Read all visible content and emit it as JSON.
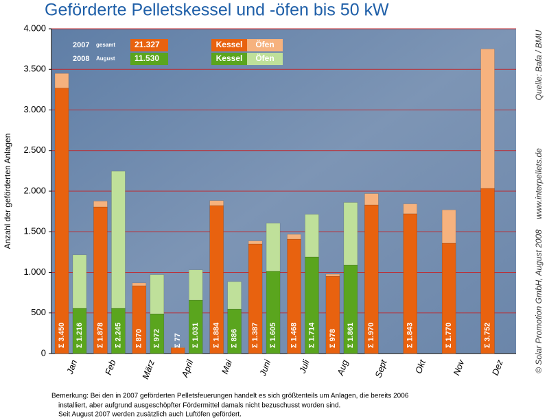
{
  "chart_data": {
    "type": "grouped-stacked-bar",
    "title": "Geförderte Pelletskessel und -öfen bis 50 kW",
    "ylabel": "Anzahl der geförderten Anlagen",
    "categories": [
      "Jan",
      "Feb",
      "März",
      "April",
      "Mai",
      "Juni",
      "Juli",
      "Aug",
      "Sept",
      "Okt",
      "Nov",
      "Dez"
    ],
    "ylim": [
      0,
      4000
    ],
    "yticks": [
      0,
      500,
      {
        "value": 1000,
        "label": "1.000"
      },
      {
        "value": 1500,
        "label": "1.500"
      },
      {
        "value": 2000,
        "label": "2.000"
      },
      {
        "value": 2500,
        "label": "2.500"
      },
      {
        "value": 3000,
        "label": "3.000"
      },
      {
        "value": 3500,
        "label": "3.500"
      },
      {
        "value": 4000,
        "label": "4.000"
      }
    ],
    "grid": true,
    "groups": [
      {
        "year": "2007",
        "note": "gesamt",
        "sum_label": "21.327",
        "series": [
          {
            "name": "Kessel",
            "color": "#e8620f",
            "values": [
              3270,
              1806,
              835,
              70,
              1823,
              1350,
              1409,
              953,
              1831,
              1722,
              1359,
              2034
            ]
          },
          {
            "name": "Öfen",
            "color": "#f6b27e",
            "values": [
              180,
              72,
              35,
              7,
              61,
              37,
              59,
              25,
              139,
              121,
              411,
              1718
            ]
          }
        ],
        "totals": [
          3450,
          1878,
          870,
          77,
          1884,
          1387,
          1468,
          978,
          1970,
          1843,
          1770,
          3752
        ],
        "total_labels": [
          "Σ 3.450",
          "Σ 1.878",
          "Σ 870",
          "Σ 77",
          "Σ 1.884",
          "Σ 1.387",
          "Σ 1.468",
          "Σ 978",
          "Σ 1.970",
          "Σ 1.843",
          "Σ 1.770",
          "Σ 3.752"
        ]
      },
      {
        "year": "2008",
        "note": "August",
        "sum_label": "11.530",
        "series": [
          {
            "name": "Kessel",
            "color": "#5aa51e",
            "values": [
              557,
              557,
              489,
              658,
              548,
              1013,
              1190,
              1089,
              null,
              null,
              null,
              null
            ]
          },
          {
            "name": "Öfen",
            "color": "#bfe09a",
            "values": [
              659,
              1688,
              483,
              373,
              338,
              592,
              524,
              772,
              null,
              null,
              null,
              null
            ]
          }
        ],
        "totals": [
          1216,
          2245,
          972,
          1031,
          886,
          1605,
          1714,
          1861,
          null,
          null,
          null,
          null
        ],
        "total_labels": [
          "Σ 1.216",
          "Σ 2.245",
          "Σ 972",
          "Σ 1.031",
          "Σ 886",
          "Σ 1.605",
          "Σ 1.714",
          "Σ 1.861",
          null,
          null,
          null,
          null
        ]
      }
    ],
    "source": "Quelle: Bafa / BMU",
    "website": "www.interpellets.de",
    "copyright": "© Solar Promotion GmbH, August 2008",
    "footnote": [
      "Bemerkung: Bei den in 2007 geförderten Pelletsfeuerungen handelt es sich größtenteils um Anlagen, die bereits 2006",
      "installiert, aber aufgrund ausgeschöpfter Fördermittel damals nicht bezuschusst worden sind.",
      "Seit August 2007 werden zusätzlich auch Luftöfen gefördert."
    ]
  }
}
